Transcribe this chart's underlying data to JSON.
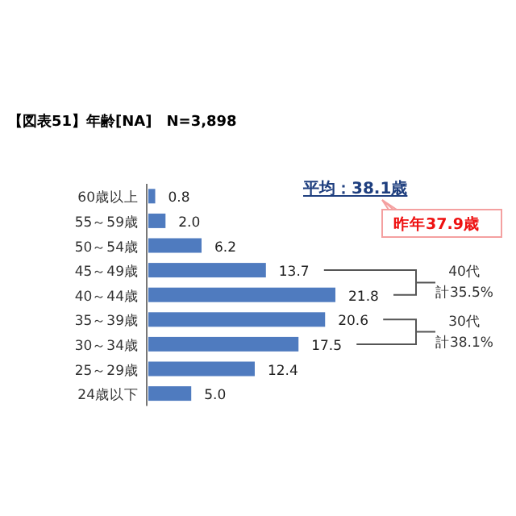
{
  "chart_data": {
    "type": "bar",
    "orientation": "horizontal",
    "title": "【図表51】年齢[NA]　N=3,898",
    "categories": [
      "60歳以上",
      "55～59歳",
      "50～54歳",
      "45～49歳",
      "40～44歳",
      "35～39歳",
      "30～34歳",
      "25～29歳",
      "24歳以下"
    ],
    "values": [
      0.8,
      2.0,
      6.2,
      13.7,
      21.8,
      20.6,
      17.5,
      12.4,
      5.0
    ],
    "color": "#4f7bbf",
    "value_labels": [
      "0.8",
      "2.0",
      "6.2",
      "13.7",
      "21.8",
      "20.6",
      "17.5",
      "12.4",
      "5.0"
    ],
    "annotations": [
      "平均：38.1歳",
      "昨年37.9歳",
      "40代",
      "計35.5%",
      "30代",
      "計38.1%"
    ]
  }
}
